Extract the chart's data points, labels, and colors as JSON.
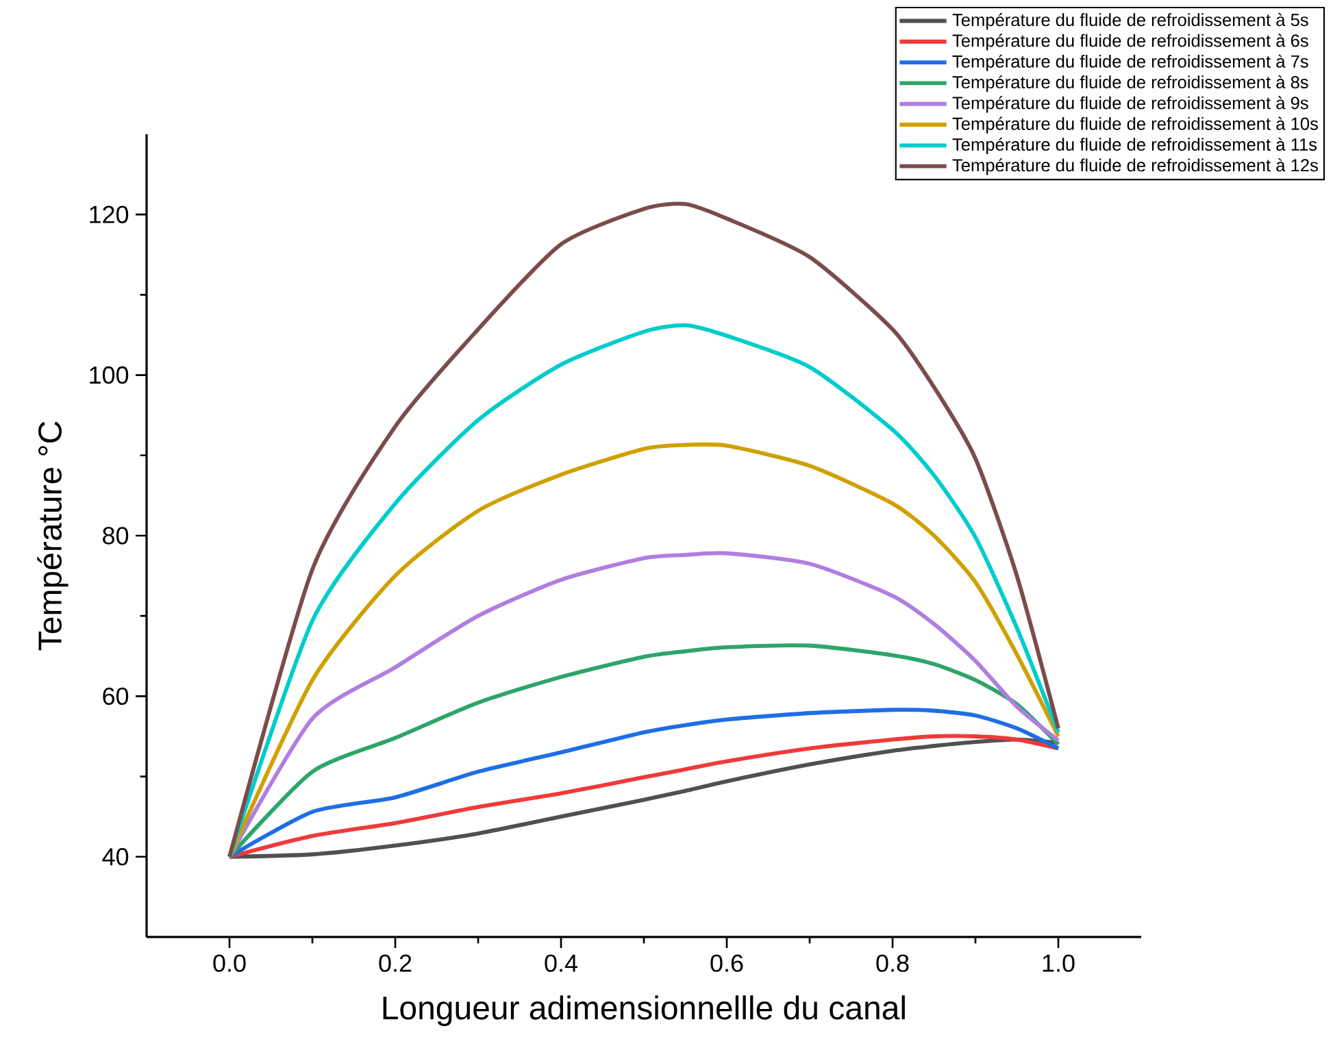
{
  "chart_data": {
    "type": "line",
    "xlabel": "Longueur adimensionnellle du canal",
    "ylabel": "Température °C",
    "xlim": [
      -0.1,
      1.1
    ],
    "ylim": [
      30,
      130
    ],
    "xticks": [
      {
        "value": 0,
        "label": "0.0"
      },
      {
        "value": 0.2,
        "label": "0.2"
      },
      {
        "value": 0.4,
        "label": "0.4"
      },
      {
        "value": 0.6,
        "label": "0.6"
      },
      {
        "value": 0.8,
        "label": "0.8"
      },
      {
        "value": 1,
        "label": "1.0"
      }
    ],
    "yticks": [
      40,
      60,
      80,
      100,
      120
    ],
    "x": [
      0,
      0.1,
      0.2,
      0.3,
      0.4,
      0.5,
      0.55,
      0.6,
      0.7,
      0.8,
      0.85,
      0.9,
      0.95,
      1.0
    ],
    "legend": "top right",
    "grid": false,
    "line_style": "solid",
    "series": [
      {
        "name": "Température du fluide de refroidissement à 5s",
        "color": "#505050",
        "values": [
          40,
          40.3,
          41.4,
          42.9,
          45,
          47.1,
          48.2,
          49.4,
          51.5,
          53.2,
          53.8,
          54.3,
          54.6,
          54.2
        ]
      },
      {
        "name": "Température du fluide de refroidissement à 6s",
        "color": "#ef3a3a",
        "values": [
          40,
          42.6,
          44.2,
          46.2,
          47.9,
          49.9,
          50.9,
          51.9,
          53.5,
          54.6,
          55,
          55,
          54.6,
          53.5
        ]
      },
      {
        "name": "Température du fluide de refroidissement à 7s",
        "color": "#1e6ee6",
        "values": [
          40,
          45.6,
          47.4,
          50.6,
          53,
          55.5,
          56.4,
          57.1,
          57.9,
          58.3,
          58.2,
          57.6,
          56,
          53.5
        ]
      },
      {
        "name": "Température du fluide de refroidissement à 8s",
        "color": "#2ea56a",
        "values": [
          40,
          50.6,
          54.8,
          59.2,
          62.4,
          64.9,
          65.6,
          66.1,
          66.3,
          65.1,
          64,
          62,
          59,
          54
        ]
      },
      {
        "name": "Température du fluide de refroidissement à 9s",
        "color": "#b07ee0",
        "values": [
          40,
          57.2,
          63.6,
          70,
          74.5,
          77.2,
          77.6,
          77.8,
          76.5,
          72.5,
          69,
          64.4,
          58.7,
          54.5
        ]
      },
      {
        "name": "Température du fluide de refroidissement à 10s",
        "color": "#d0a000",
        "values": [
          40,
          62,
          75,
          83.1,
          87.6,
          90.8,
          91.3,
          91.2,
          88.7,
          84,
          80,
          74.2,
          65.2,
          55
        ]
      },
      {
        "name": "Température du fluide de refroidissement à 11s",
        "color": "#00cccc",
        "values": [
          40,
          69.4,
          84,
          94.4,
          101.3,
          105.4,
          106.2,
          104.9,
          101,
          93.2,
          87.5,
          79.8,
          68.5,
          55.5
        ]
      },
      {
        "name": "Température du fluide de refroidissement à 12s",
        "color": "#7b4c4c",
        "values": [
          40,
          75.8,
          93.6,
          105.7,
          116.3,
          120.7,
          121.3,
          119.5,
          114.7,
          105.7,
          98.5,
          89.6,
          75,
          56
        ]
      }
    ]
  }
}
